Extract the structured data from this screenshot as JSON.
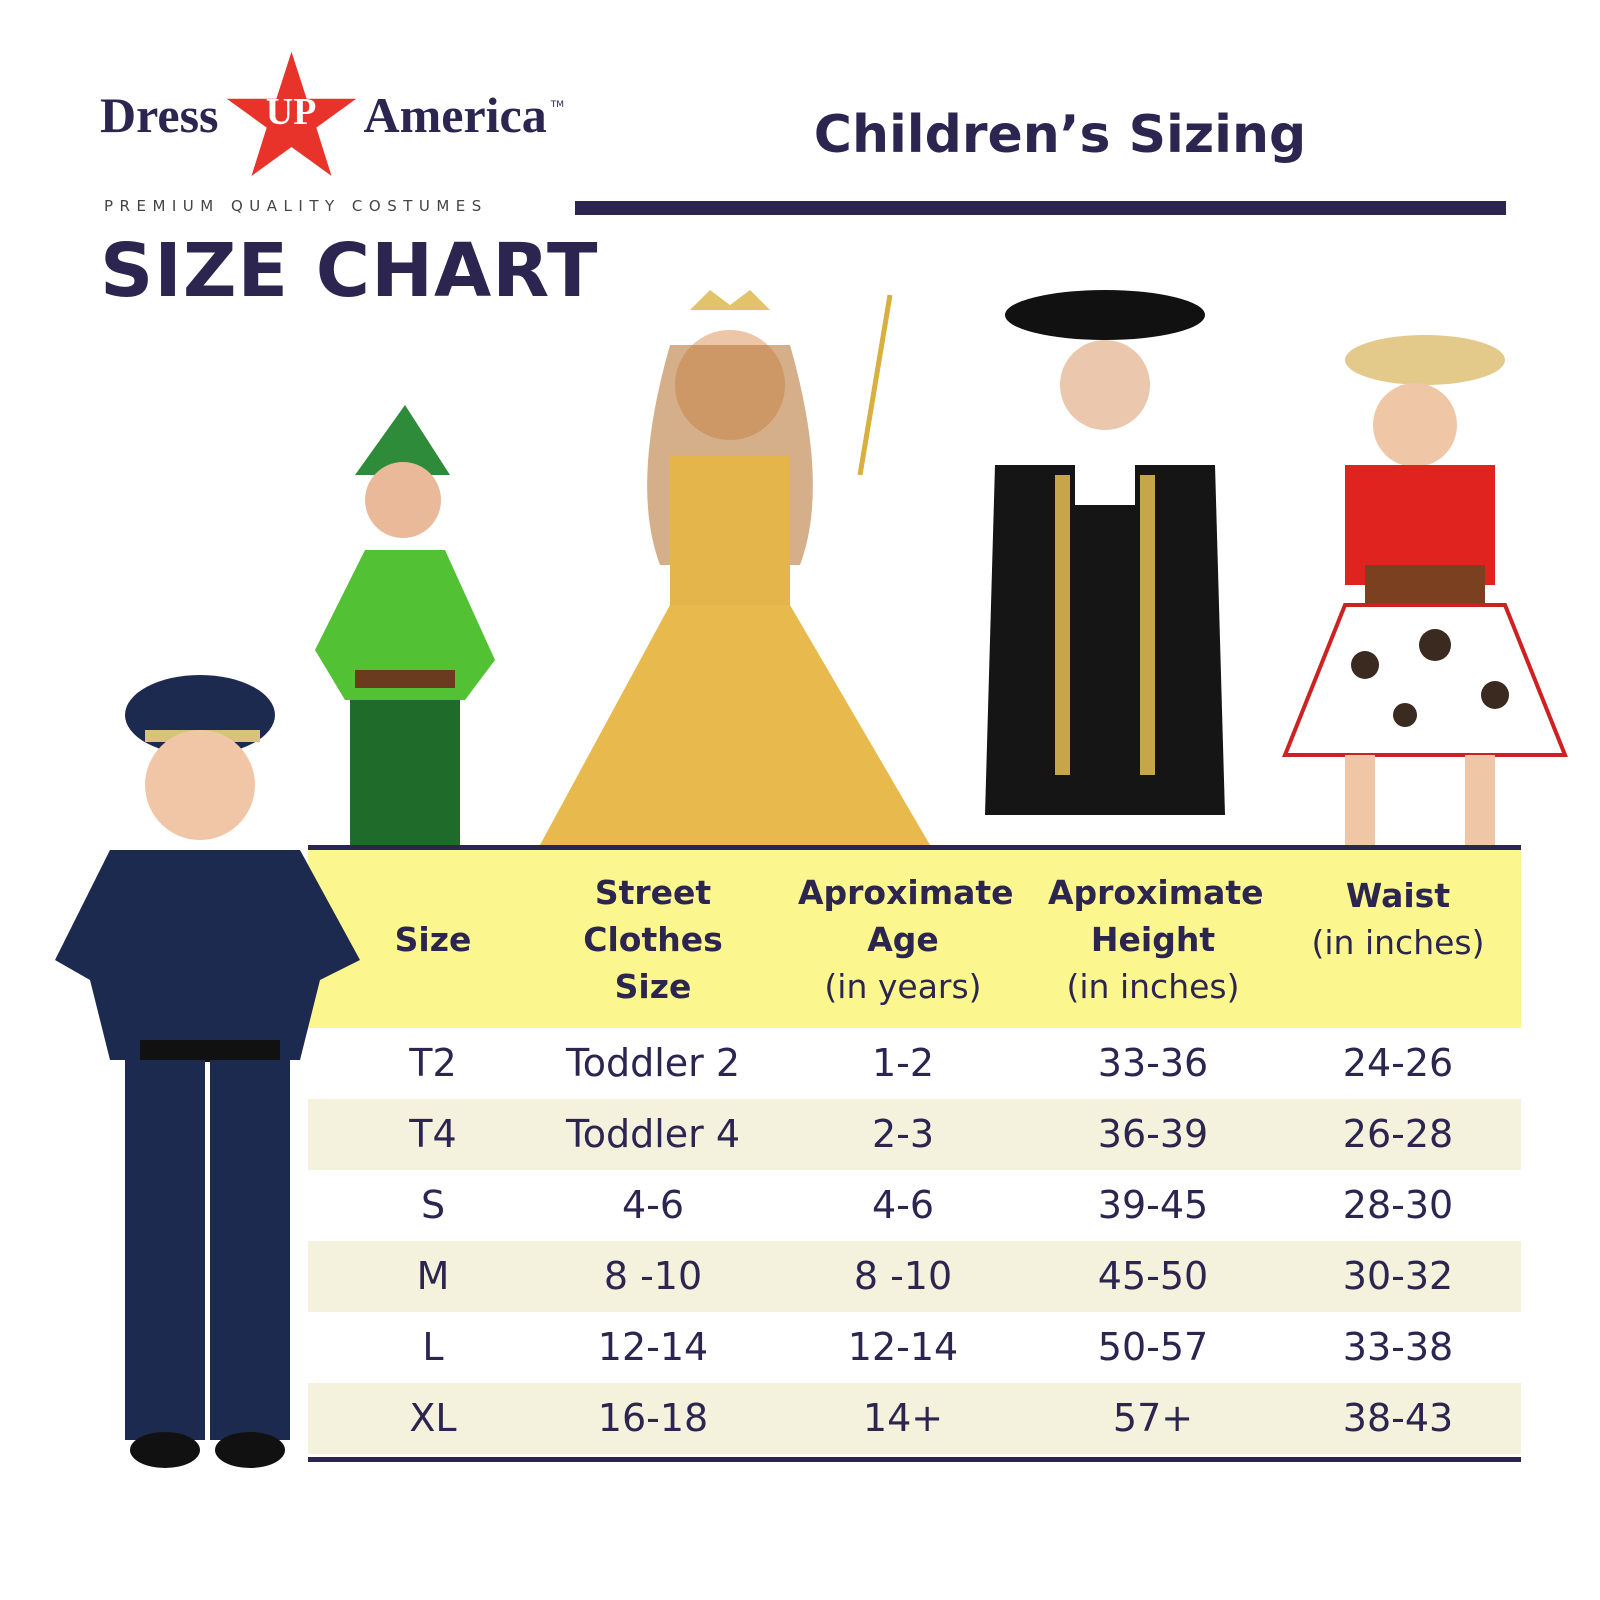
{
  "logo": {
    "brand_left": "Dress",
    "brand_star": "UP",
    "brand_right": "America",
    "trademark": "TM",
    "tagline": "PREMIUM QUALITY COSTUMES",
    "star_color": "#e8332a"
  },
  "page_title": "SIZE CHART",
  "section_title": "Children’s Sizing",
  "colors": {
    "navy": "#2b2550",
    "header_bg": "#fbf78e",
    "alt_row_bg": "#f4f1dc"
  },
  "images": [
    "police-officer-costume",
    "peter-pan-costume",
    "princess-gown-costume",
    "colonial-costume",
    "cowgirl-costume"
  ],
  "table": {
    "headers": [
      {
        "title": "Size",
        "sub": ""
      },
      {
        "title": "Street Clothes Size",
        "sub": ""
      },
      {
        "title": "Aproximate Age",
        "sub": "(in years)"
      },
      {
        "title": "Aproximate Height",
        "sub": "(in inches)"
      },
      {
        "title": "Waist",
        "sub": "(in inches)"
      }
    ],
    "rows": [
      [
        "T2",
        "Toddler 2",
        "1-2",
        "33-36",
        "24-26"
      ],
      [
        "T4",
        "Toddler 4",
        "2-3",
        "36-39",
        "26-28"
      ],
      [
        "S",
        "4-6",
        "4-6",
        "39-45",
        "28-30"
      ],
      [
        "M",
        "8 -10",
        "8 -10",
        "45-50",
        "30-32"
      ],
      [
        "L",
        "12-14",
        "12-14",
        "50-57",
        "33-38"
      ],
      [
        "XL",
        "16-18",
        "14+",
        "57+",
        "38-43"
      ]
    ]
  }
}
